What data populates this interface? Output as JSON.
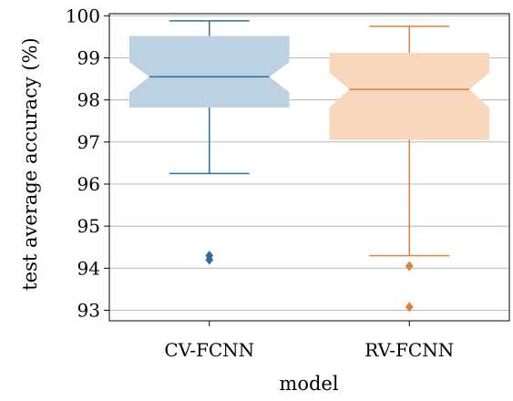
{
  "chart_data": {
    "type": "box",
    "title": "",
    "xlabel": "model",
    "ylabel": "test average accuracy (%)",
    "ylim": [
      92.75,
      100.05
    ],
    "yticks": [
      93,
      94,
      95,
      96,
      97,
      98,
      99,
      100
    ],
    "grid": "horizontal",
    "notched": true,
    "categories": [
      "CV-FCNN",
      "RV-FCNN"
    ],
    "boxes": [
      {
        "category": "CV-FCNN",
        "whisker_low": 96.25,
        "q1": 97.82,
        "median": 98.55,
        "q3": 99.52,
        "whisker_high": 99.88,
        "notch_low": 98.18,
        "notch_high": 98.9,
        "outliers": [
          94.3,
          94.2
        ],
        "color": "#2e6fa3",
        "fill": "#bcd2e2"
      },
      {
        "category": "RV-FCNN",
        "whisker_low": 94.3,
        "q1": 97.05,
        "median": 98.25,
        "q3": 99.12,
        "whisker_high": 99.75,
        "notch_low": 97.82,
        "notch_high": 98.65,
        "outliers": [
          94.05,
          93.08
        ],
        "color": "#e0813a",
        "fill": "#f8d7bd"
      }
    ]
  }
}
